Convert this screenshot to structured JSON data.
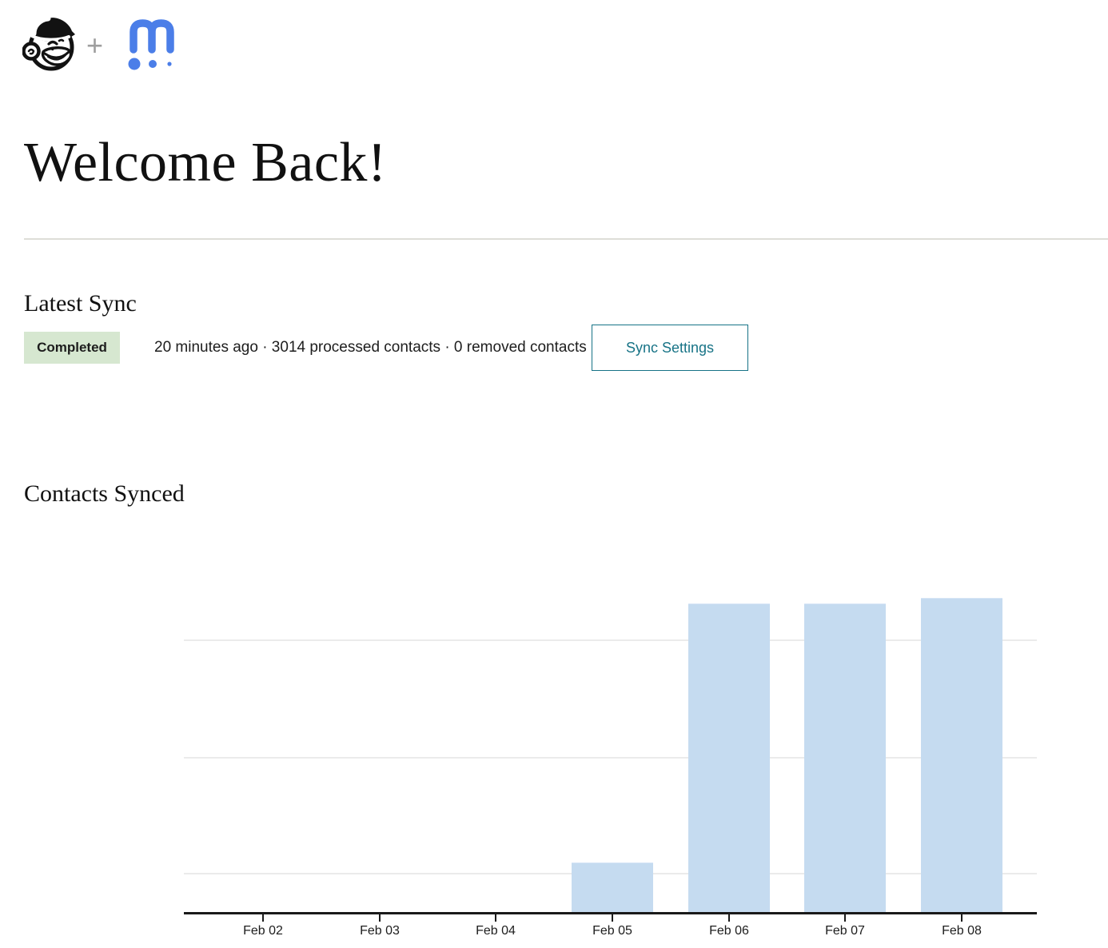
{
  "header": {
    "mailchimp_logo": "mailchimp-freddie-icon",
    "plus_separator": "+",
    "partner_logo": "m-three-dots-icon",
    "partner_brand_blue": "#4b7ee8"
  },
  "page": {
    "title": "Welcome Back!"
  },
  "latest_sync": {
    "heading": "Latest Sync",
    "status_badge": "Completed",
    "status_badge_bg": "#d6e7d0",
    "status_text": "20 minutes ago · 3014 processed contacts · 0 removed contacts",
    "settings_button_label": "Sync Settings",
    "accent_teal": "#177386"
  },
  "contacts_synced": {
    "heading": "Contacts Synced"
  },
  "chart_data": {
    "type": "bar",
    "title": "Contacts Synced",
    "categories": [
      "Feb 02",
      "Feb 03",
      "Feb 04",
      "Feb 05",
      "Feb 06",
      "Feb 07",
      "Feb 08"
    ],
    "values": [
      0,
      0,
      0,
      475,
      2960,
      2960,
      3014
    ],
    "xlabel": "",
    "ylabel": "",
    "ylim": [
      0,
      3300
    ],
    "y_axis_labels": "none",
    "gridlines": "3 horizontal unlabeled gridlines",
    "legend_position": "none",
    "bar_color": "#c5dbf0",
    "axis_color": "#1a1a1a",
    "gridline_color": "#ebebeb"
  }
}
